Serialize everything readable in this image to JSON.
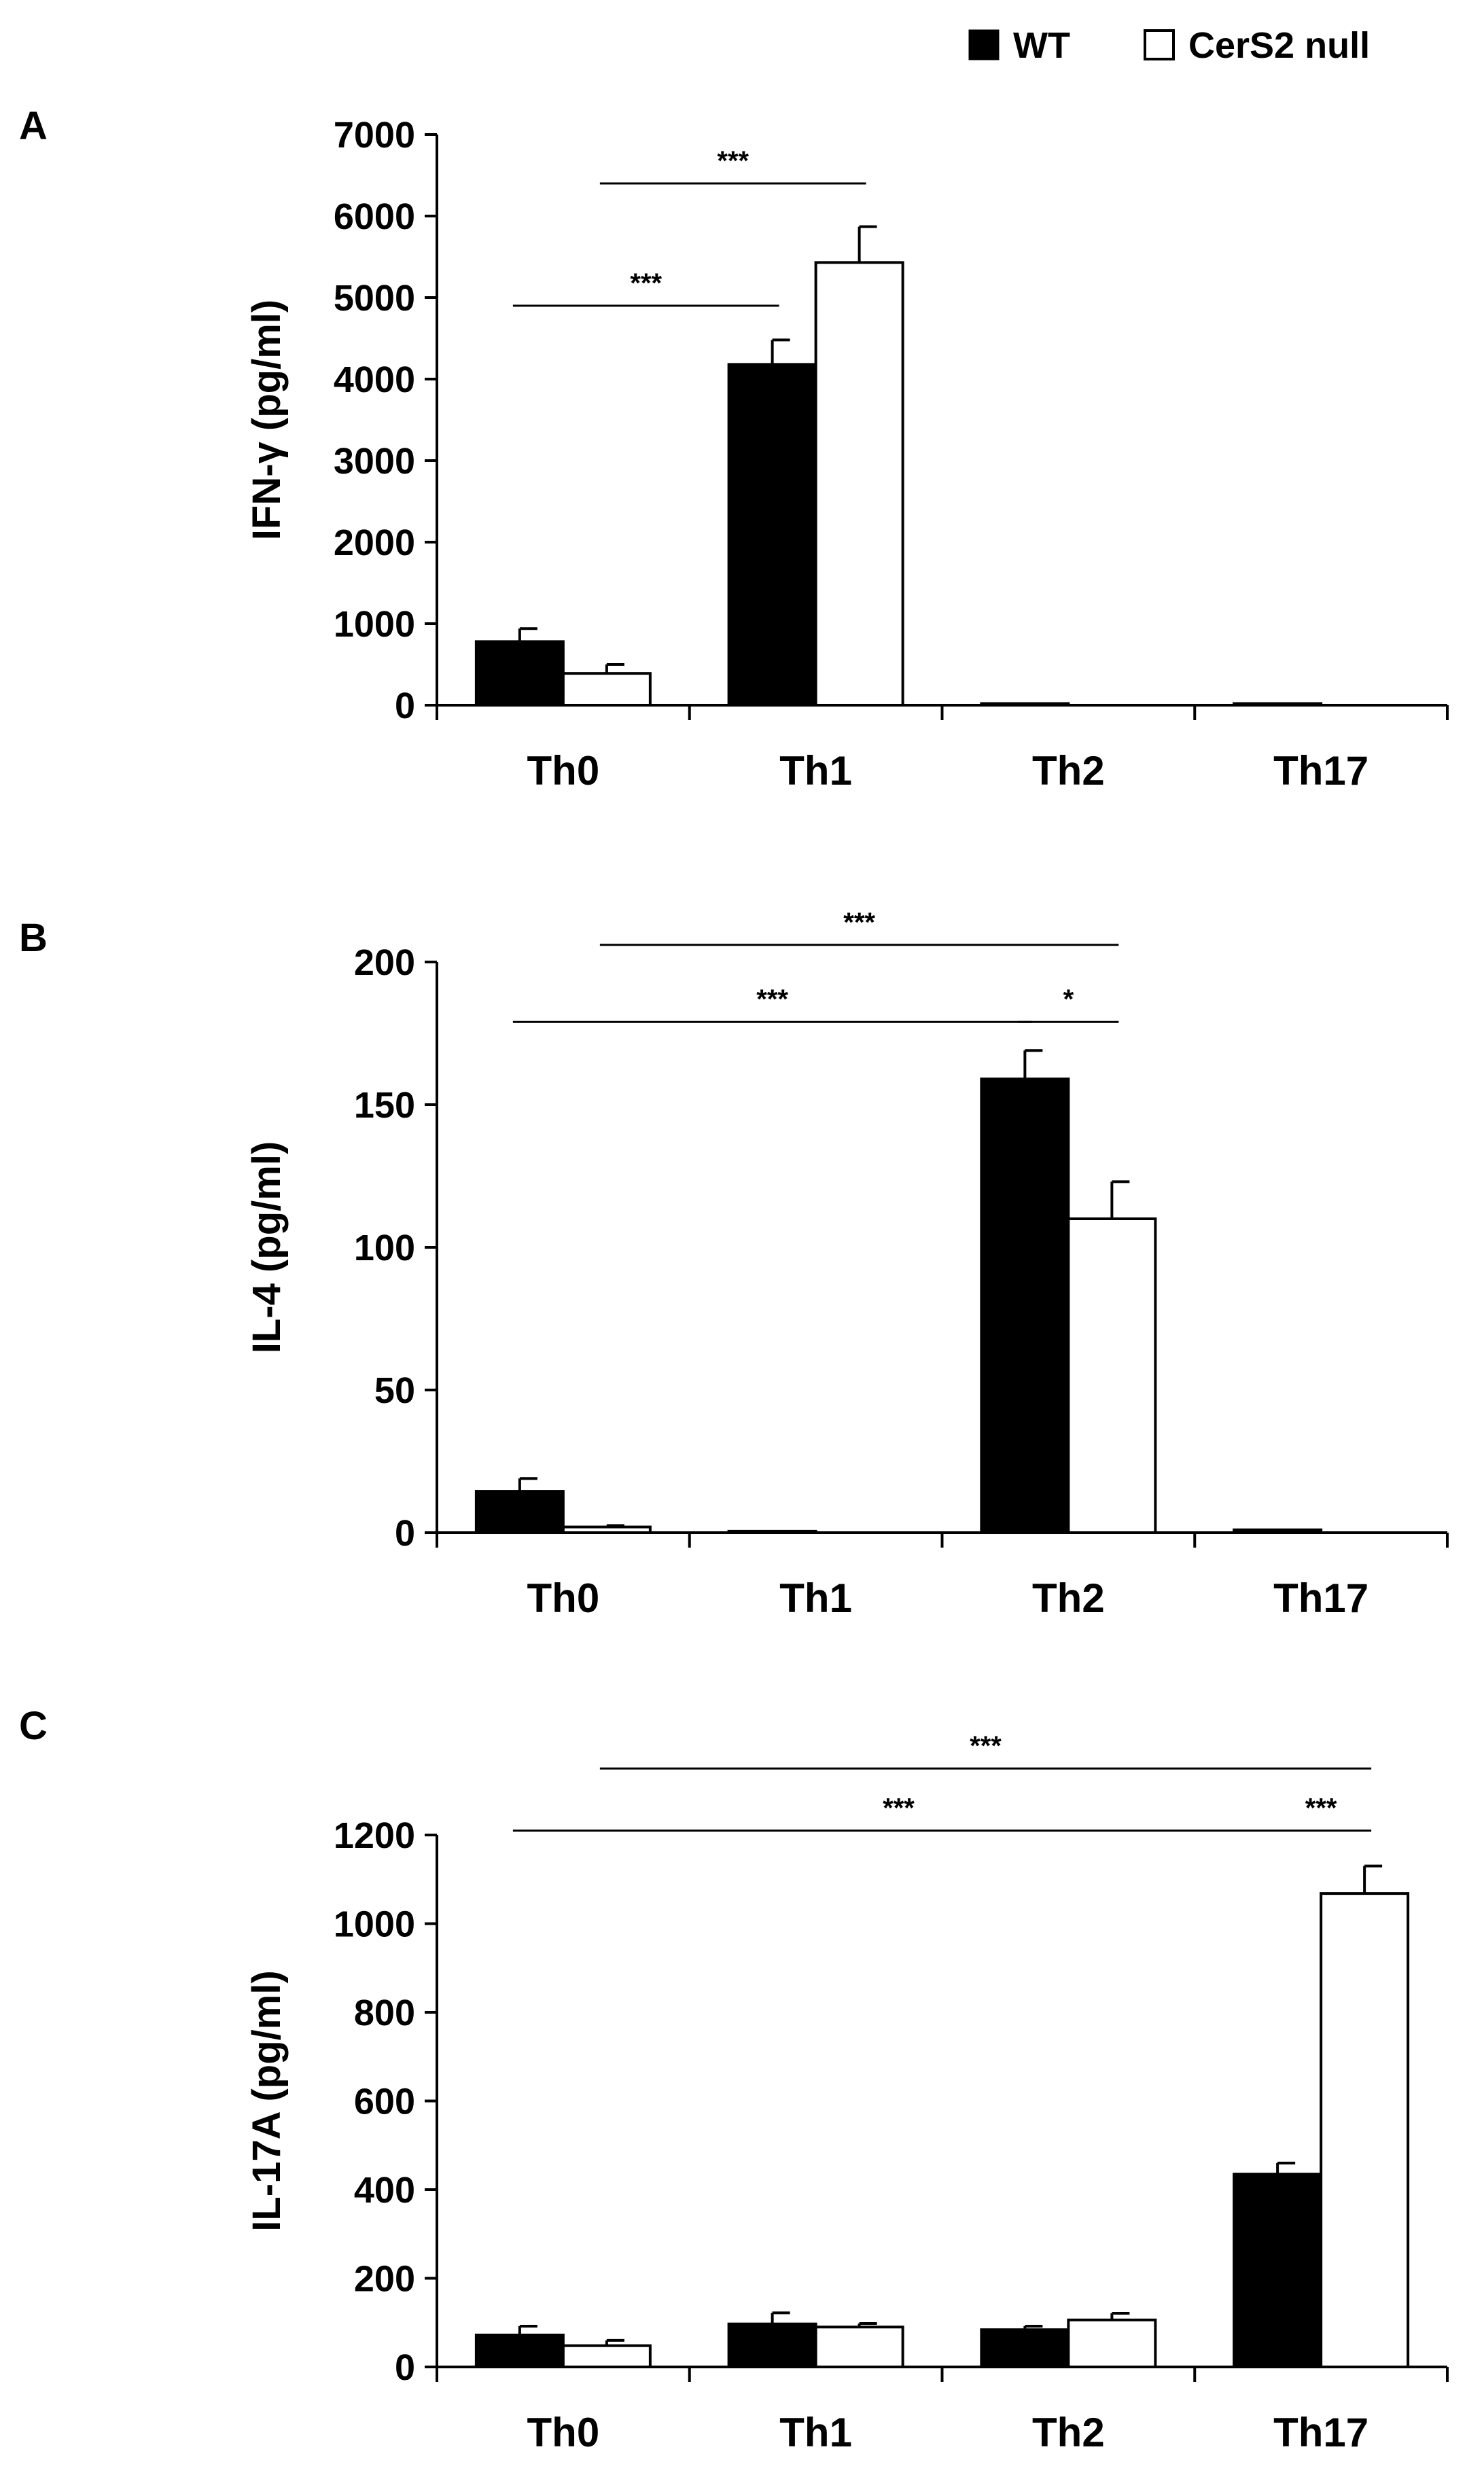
{
  "legend": {
    "items": [
      {
        "label": "WT",
        "color": "#000000"
      },
      {
        "label": "CerS2 null",
        "color": "#ffffff"
      }
    ]
  },
  "chart_data": [
    {
      "panel": "A",
      "type": "bar",
      "ylabel": "IFN-γ (pg/ml)",
      "ylim": [
        0,
        7000
      ],
      "yticks": [
        0,
        1000,
        2000,
        3000,
        4000,
        5000,
        6000,
        7000
      ],
      "categories": [
        "Th0",
        "Th1",
        "Th2",
        "Th17"
      ],
      "series": [
        {
          "name": "WT",
          "values": [
            780,
            4180,
            20,
            20
          ],
          "errors": [
            160,
            300,
            0,
            0
          ]
        },
        {
          "name": "CerS2 null",
          "values": [
            390,
            5430,
            0,
            0
          ],
          "errors": [
            110,
            440,
            0,
            0
          ]
        }
      ],
      "significance": [
        {
          "label": "***",
          "from": {
            "category": 0,
            "series": 0
          },
          "to": {
            "category": 1,
            "series": 0
          },
          "y": 4900
        },
        {
          "label": "***",
          "from": {
            "category": 0,
            "series": 1
          },
          "to": {
            "category": 1,
            "series": 1
          },
          "y": 6400
        }
      ]
    },
    {
      "panel": "B",
      "type": "bar",
      "ylabel": "IL-4 (pg/ml)",
      "ylim": [
        0,
        200
      ],
      "yticks": [
        0,
        50,
        100,
        150,
        200
      ],
      "categories": [
        "Th0",
        "Th1",
        "Th2",
        "Th17"
      ],
      "series": [
        {
          "name": "WT",
          "values": [
            14.5,
            0.5,
            159,
            1
          ],
          "errors": [
            4.5,
            0,
            10,
            0
          ]
        },
        {
          "name": "CerS2 null",
          "values": [
            2,
            0,
            110,
            0
          ],
          "errors": [
            0.5,
            0,
            13,
            0
          ]
        }
      ],
      "significance": [
        {
          "label": "***",
          "from": {
            "category": 0,
            "series": 0
          },
          "to": {
            "category": 2,
            "series": 0
          },
          "y": 179
        },
        {
          "label": "*",
          "from": {
            "category": 2,
            "series": 0
          },
          "to": {
            "category": 2,
            "series": 1
          },
          "y": 179
        },
        {
          "label": "***",
          "from": {
            "category": 0,
            "series": 1
          },
          "to": {
            "category": 2,
            "series": 1
          },
          "y": 206
        }
      ]
    },
    {
      "panel": "C",
      "type": "bar",
      "ylabel": "IL-17A (pg/ml)",
      "ylim": [
        0,
        1200
      ],
      "yticks": [
        0,
        200,
        400,
        600,
        800,
        1000,
        1200
      ],
      "categories": [
        "Th0",
        "Th1",
        "Th2",
        "Th17"
      ],
      "series": [
        {
          "name": "WT",
          "values": [
            72,
            97,
            84,
            435
          ],
          "errors": [
            20,
            25,
            8,
            25
          ]
        },
        {
          "name": "CerS2 null",
          "values": [
            48,
            90,
            106,
            1068
          ],
          "errors": [
            12,
            8,
            15,
            62
          ]
        }
      ],
      "significance": [
        {
          "label": "***",
          "from": {
            "category": 0,
            "series": 0
          },
          "to": {
            "category": 3,
            "series": 0
          },
          "y": 1210
        },
        {
          "label": "***",
          "from": {
            "category": 3,
            "series": 0
          },
          "to": {
            "category": 3,
            "series": 1
          },
          "y": 1210
        },
        {
          "label": "***",
          "from": {
            "category": 0,
            "series": 1
          },
          "to": {
            "category": 3,
            "series": 1
          },
          "y": 1350
        }
      ]
    }
  ]
}
